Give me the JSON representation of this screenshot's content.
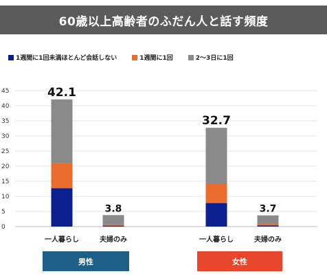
{
  "title": "60歳以上高齢者のふだん人と話す頻度",
  "colors": {
    "series": [
      "#0b1f8f",
      "#ea6c2e",
      "#8a8a8a"
    ],
    "group_male": "#1d5f86",
    "group_female": "#e8472d",
    "title_bg": "#5b5b5b"
  },
  "chart_data": {
    "type": "bar",
    "stacked": true,
    "title": "60歳以上高齢者のふだん人と話す頻度",
    "ylim": [
      0,
      45
    ],
    "y_ticks": [
      0,
      5,
      10,
      15,
      20,
      25,
      30,
      35,
      40,
      45
    ],
    "grid": true,
    "legend_position": "top-left",
    "categories": [
      "一人暮らし",
      "夫婦のみ",
      "一人暮らし",
      "夫婦のみ"
    ],
    "groups": [
      {
        "label": "男性",
        "categories": [
          0,
          1
        ]
      },
      {
        "label": "女性",
        "categories": [
          2,
          3
        ]
      }
    ],
    "series": [
      {
        "name": "1週間に1回未満ほとんど会話しない",
        "values": [
          12.7,
          0.3,
          7.8,
          0.4
        ]
      },
      {
        "name": "1週間に1回",
        "values": [
          8.3,
          0.4,
          6.4,
          0.5
        ]
      },
      {
        "name": "2〜3日に1回",
        "values": [
          21.1,
          3.1,
          18.5,
          2.8
        ]
      }
    ],
    "totals": [
      "42.1",
      "3.8",
      "32.7",
      "3.7"
    ]
  }
}
